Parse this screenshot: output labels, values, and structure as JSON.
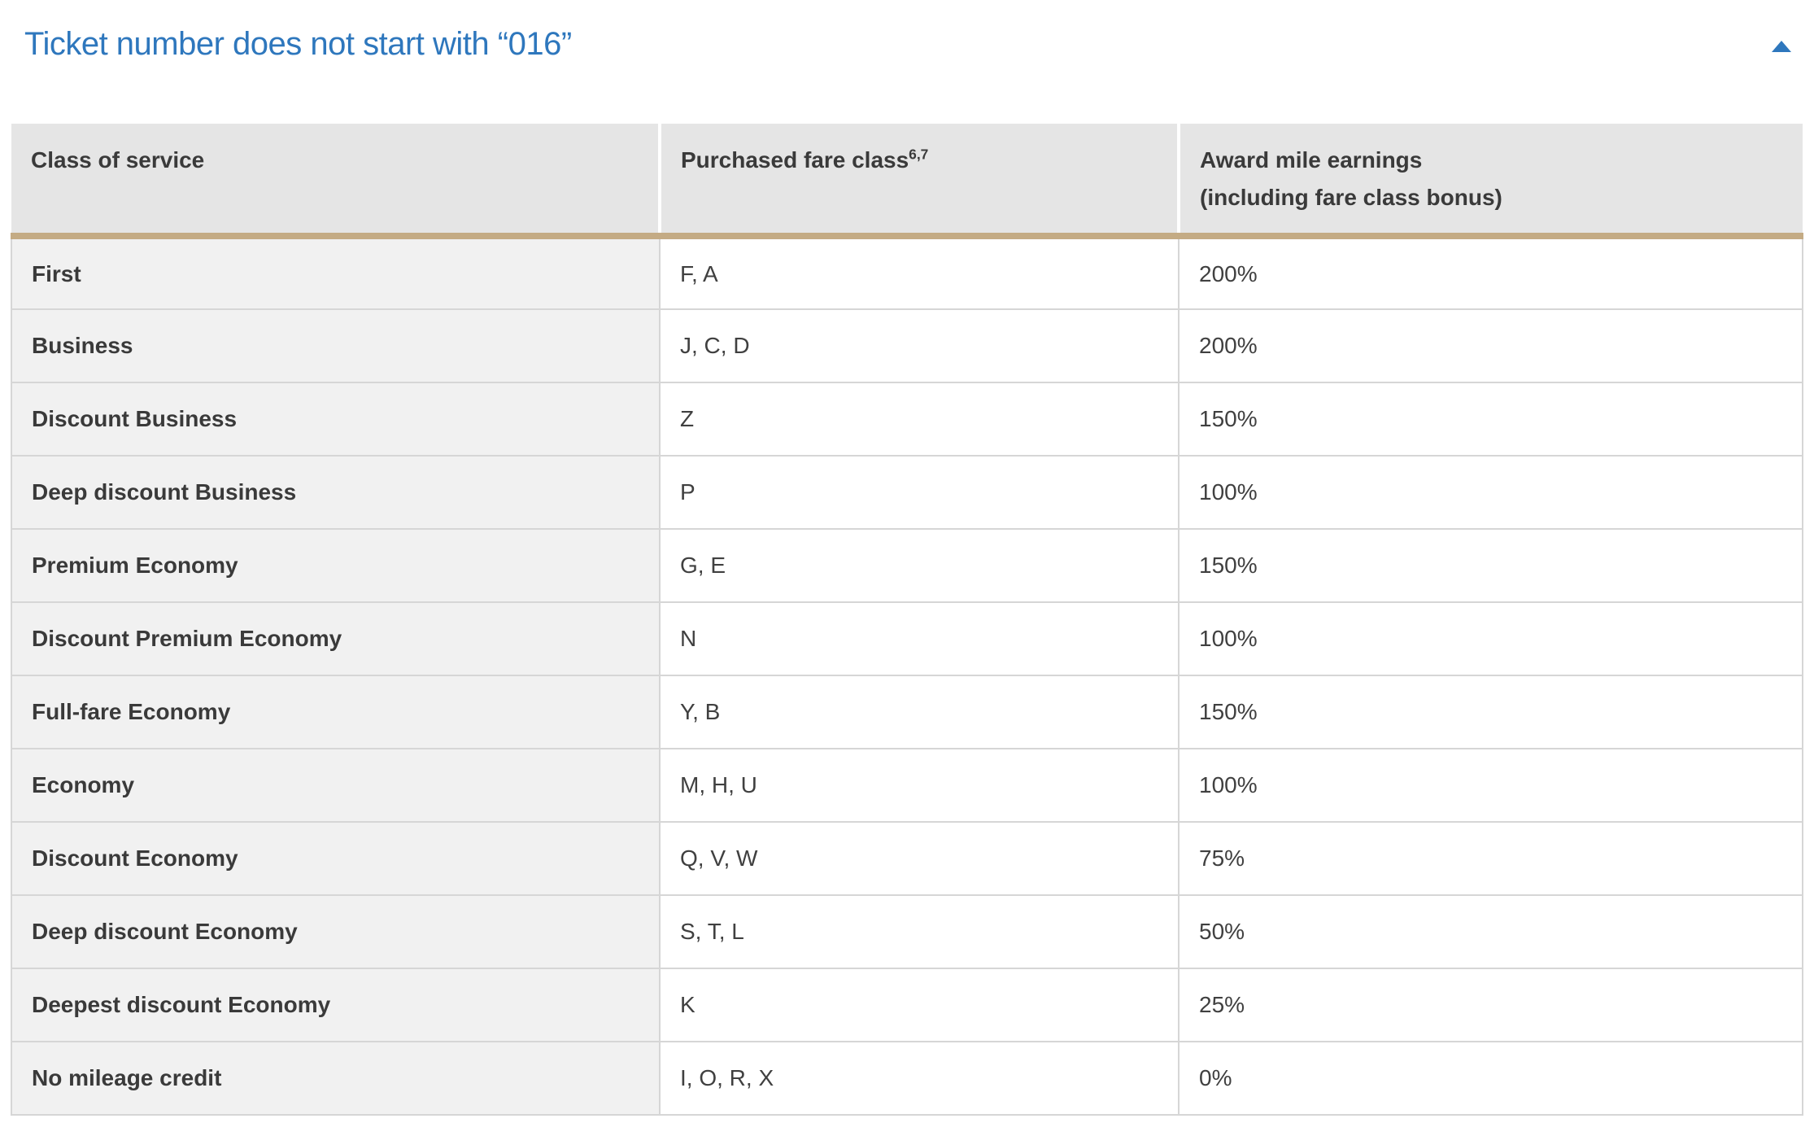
{
  "accordion": {
    "title": "Ticket number does not start with “016”",
    "state": "expanded",
    "collapse_icon": "chevron-up-icon"
  },
  "table": {
    "columns": [
      {
        "label": "Class of service"
      },
      {
        "label": "Purchased fare class",
        "sup": "6,7"
      },
      {
        "label": "Award mile earnings",
        "label2": "(including fare class bonus)"
      }
    ],
    "rows": [
      [
        "First",
        "F, A",
        "200%"
      ],
      [
        "Business",
        "J, C, D",
        "200%"
      ],
      [
        "Discount Business",
        "Z",
        "150%"
      ],
      [
        "Deep discount Business",
        "P",
        "100%"
      ],
      [
        "Premium Economy",
        "G, E",
        "150%"
      ],
      [
        "Discount Premium Economy",
        "N",
        "100%"
      ],
      [
        "Full-fare Economy",
        "Y, B",
        "150%"
      ],
      [
        "Economy",
        "M, H, U",
        "100%"
      ],
      [
        "Discount Economy",
        "Q, V, W",
        "75%"
      ],
      [
        "Deep discount Economy",
        "S, T, L",
        "50%"
      ],
      [
        "Deepest discount Economy",
        "K",
        "25%"
      ],
      [
        "No mileage credit",
        "I, O, R, X",
        "0%"
      ]
    ]
  },
  "colors": {
    "accent_blue": "#2e77bd",
    "header_background": "#e5e5e5",
    "row_label_background": "#f1f1f1",
    "header_underline_tan": "#c4ab84",
    "grid_border": "#d6d6d6",
    "text": "#3a3a3a"
  }
}
